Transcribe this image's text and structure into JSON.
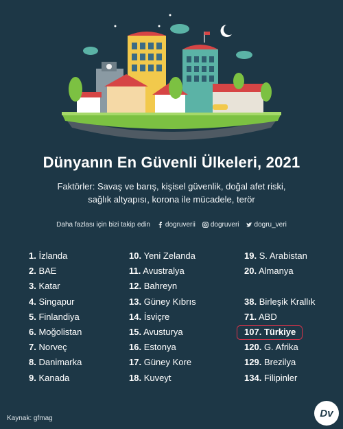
{
  "title": "Dünyanın En Güvenli Ülkeleri, 2021",
  "subtitle_line1": "Faktörler: Savaş ve barış, kişisel güvenlik, doğal afet riski,",
  "subtitle_line2": "sağlık altyapısı, korona ile mücadele, terör",
  "social": {
    "follow_text": "Daha fazlası için bizi takip edin",
    "facebook": "dogruverii",
    "instagram": "dogruveri",
    "twitter": "dogru_veri"
  },
  "colors": {
    "background": "#1d3746",
    "highlight_border": "#e0334a"
  },
  "rankings": {
    "col1": [
      {
        "num": "1.",
        "name": "İzlanda"
      },
      {
        "num": "2.",
        "name": "BAE"
      },
      {
        "num": "3.",
        "name": "Katar"
      },
      {
        "num": "4.",
        "name": "Singapur"
      },
      {
        "num": "5.",
        "name": "Finlandiya"
      },
      {
        "num": "6.",
        "name": "Moğolistan"
      },
      {
        "num": "7.",
        "name": "Norveç"
      },
      {
        "num": "8.",
        "name": "Danimarka"
      },
      {
        "num": "9.",
        "name": "Kanada"
      }
    ],
    "col2": [
      {
        "num": "10.",
        "name": "Yeni Zelanda"
      },
      {
        "num": "11.",
        "name": "Avustralya"
      },
      {
        "num": "12.",
        "name": "Bahreyn"
      },
      {
        "num": "13.",
        "name": "Güney Kıbrıs"
      },
      {
        "num": "14.",
        "name": "İsviçre"
      },
      {
        "num": "15.",
        "name": "Avusturya"
      },
      {
        "num": "16.",
        "name": "Estonya"
      },
      {
        "num": "17.",
        "name": "Güney Kore"
      },
      {
        "num": "18.",
        "name": "Kuveyt"
      }
    ],
    "col3": [
      {
        "num": "19.",
        "name": "S. Arabistan"
      },
      {
        "num": "20.",
        "name": "Almanya"
      },
      {
        "num": "38.",
        "name": "Birleşik Krallık"
      },
      {
        "num": "71.",
        "name": "ABD"
      },
      {
        "num": "107.",
        "name": "Türkiye"
      },
      {
        "num": "120.",
        "name": "G. Afrika"
      },
      {
        "num": "129.",
        "name": "Brezilya"
      },
      {
        "num": "134.",
        "name": "Filipinler"
      }
    ]
  },
  "source": "Kaynak: gfmag",
  "logo_text": "Dv"
}
